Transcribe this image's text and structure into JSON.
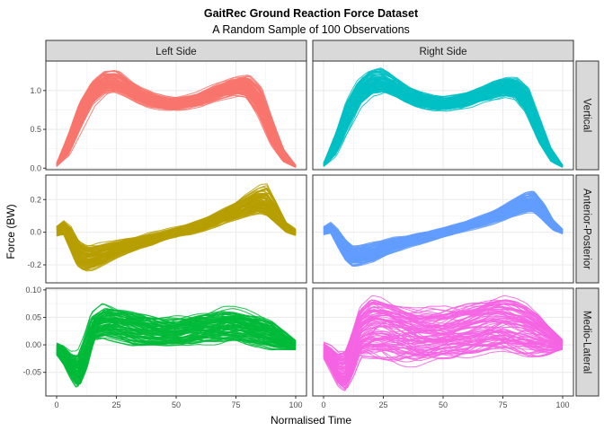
{
  "chart_data": {
    "type": "line",
    "title": "GaitRec Ground Reaction Force Dataset",
    "subtitle": "A Random Sample of 100 Observations",
    "xlabel": "Normalised Time",
    "ylabel": "Force (BW)",
    "grid": true,
    "legend": "none",
    "facet_columns": [
      "Left Side",
      "Right Side"
    ],
    "facet_rows": [
      "Vertical",
      "Anterior-Posterior",
      "Medio-Lateral"
    ],
    "x_ticks": [
      "0",
      "25",
      "50",
      "75",
      "100"
    ],
    "xlim": [
      0,
      100
    ],
    "panels": [
      {
        "row": "Vertical",
        "side": "Left Side",
        "color": "#F8766D",
        "ylim": [
          -0.02,
          1.38
        ],
        "y_ticks": [
          0.0,
          0.5,
          1.0
        ],
        "y_tick_labels": [
          "0.0",
          "0.5",
          "1.0"
        ],
        "x": [
          0,
          5,
          10,
          15,
          20,
          25,
          30,
          35,
          40,
          45,
          50,
          55,
          60,
          65,
          70,
          75,
          80,
          85,
          90,
          95,
          100
        ],
        "mean": [
          0.04,
          0.3,
          0.7,
          0.98,
          1.1,
          1.1,
          1.02,
          0.93,
          0.87,
          0.84,
          0.83,
          0.85,
          0.89,
          0.95,
          1.01,
          1.06,
          1.05,
          0.85,
          0.45,
          0.14,
          0.02
        ],
        "min": [
          0.02,
          0.16,
          0.48,
          0.8,
          0.95,
          0.98,
          0.92,
          0.84,
          0.78,
          0.75,
          0.74,
          0.76,
          0.79,
          0.85,
          0.89,
          0.93,
          0.9,
          0.65,
          0.3,
          0.08,
          0.01
        ],
        "max": [
          0.07,
          0.45,
          0.88,
          1.13,
          1.25,
          1.26,
          1.14,
          1.04,
          0.97,
          0.93,
          0.91,
          0.94,
          0.98,
          1.05,
          1.12,
          1.18,
          1.2,
          1.06,
          0.66,
          0.26,
          0.04
        ]
      },
      {
        "row": "Vertical",
        "side": "Right Side",
        "color": "#00BFC4",
        "ylim": [
          -0.02,
          1.38
        ],
        "y_ticks": [
          0.0,
          0.5,
          1.0
        ],
        "y_tick_labels": [
          "0.0",
          "0.5",
          "1.0"
        ],
        "x": [
          0,
          5,
          10,
          15,
          20,
          25,
          30,
          35,
          40,
          45,
          50,
          55,
          60,
          65,
          70,
          75,
          80,
          85,
          90,
          95,
          100
        ],
        "mean": [
          0.04,
          0.3,
          0.72,
          0.99,
          1.1,
          1.09,
          1.02,
          0.93,
          0.87,
          0.84,
          0.83,
          0.85,
          0.89,
          0.95,
          1.0,
          1.05,
          1.04,
          0.87,
          0.47,
          0.15,
          0.02
        ],
        "min": [
          0.02,
          0.15,
          0.45,
          0.78,
          0.93,
          0.96,
          0.9,
          0.83,
          0.77,
          0.74,
          0.73,
          0.75,
          0.78,
          0.84,
          0.87,
          0.91,
          0.88,
          0.66,
          0.3,
          0.08,
          0.01
        ],
        "max": [
          0.07,
          0.48,
          0.92,
          1.17,
          1.28,
          1.29,
          1.17,
          1.06,
          0.99,
          0.94,
          0.92,
          0.95,
          0.99,
          1.05,
          1.12,
          1.17,
          1.18,
          1.07,
          0.68,
          0.28,
          0.04
        ]
      },
      {
        "row": "Anterior-Posterior",
        "side": "Left Side",
        "color": "#B79F00",
        "ylim": [
          -0.31,
          0.35
        ],
        "y_ticks": [
          -0.2,
          0.0,
          0.2
        ],
        "y_tick_labels": [
          "-0.2",
          "0.0",
          "0.2"
        ],
        "x": [
          0,
          3,
          6,
          9,
          12,
          15,
          20,
          25,
          30,
          35,
          40,
          45,
          50,
          55,
          60,
          65,
          70,
          75,
          80,
          85,
          88,
          92,
          96,
          100
        ],
        "mean": [
          0.01,
          0.02,
          -0.05,
          -0.12,
          -0.15,
          -0.15,
          -0.13,
          -0.1,
          -0.08,
          -0.06,
          -0.04,
          -0.02,
          0.0,
          0.02,
          0.04,
          0.07,
          0.1,
          0.13,
          0.16,
          0.18,
          0.17,
          0.1,
          0.03,
          0.0
        ],
        "min": [
          -0.03,
          -0.02,
          -0.12,
          -0.22,
          -0.25,
          -0.24,
          -0.2,
          -0.16,
          -0.13,
          -0.1,
          -0.08,
          -0.05,
          -0.03,
          -0.02,
          -0.0,
          0.02,
          0.05,
          0.07,
          0.09,
          0.11,
          0.1,
          0.05,
          0.0,
          -0.02
        ],
        "max": [
          0.04,
          0.08,
          0.05,
          -0.04,
          -0.07,
          -0.07,
          -0.06,
          -0.05,
          -0.03,
          -0.02,
          0.0,
          0.01,
          0.03,
          0.05,
          0.08,
          0.11,
          0.15,
          0.19,
          0.24,
          0.29,
          0.31,
          0.2,
          0.07,
          0.02
        ]
      },
      {
        "row": "Anterior-Posterior",
        "side": "Right Side",
        "color": "#619CFF",
        "ylim": [
          -0.31,
          0.35
        ],
        "y_ticks": [
          -0.2,
          0.0,
          0.2
        ],
        "y_tick_labels": [
          "-0.2",
          "0.0",
          "0.2"
        ],
        "x": [
          0,
          3,
          6,
          9,
          12,
          15,
          20,
          25,
          30,
          35,
          40,
          45,
          50,
          55,
          60,
          65,
          70,
          75,
          80,
          85,
          88,
          92,
          96,
          100
        ],
        "mean": [
          0.01,
          0.02,
          -0.04,
          -0.1,
          -0.14,
          -0.14,
          -0.13,
          -0.1,
          -0.08,
          -0.06,
          -0.04,
          -0.02,
          0.0,
          0.02,
          0.04,
          0.06,
          0.09,
          0.12,
          0.15,
          0.18,
          0.18,
          0.12,
          0.04,
          0.0
        ],
        "min": [
          -0.02,
          -0.01,
          -0.1,
          -0.18,
          -0.22,
          -0.21,
          -0.19,
          -0.15,
          -0.12,
          -0.09,
          -0.07,
          -0.05,
          -0.03,
          -0.01,
          0.01,
          0.03,
          0.05,
          0.07,
          0.09,
          0.11,
          0.11,
          0.06,
          0.01,
          -0.01
        ],
        "max": [
          0.04,
          0.07,
          0.03,
          -0.03,
          -0.07,
          -0.07,
          -0.06,
          -0.05,
          -0.03,
          -0.02,
          0.0,
          0.01,
          0.03,
          0.05,
          0.07,
          0.1,
          0.13,
          0.17,
          0.21,
          0.25,
          0.26,
          0.19,
          0.08,
          0.02
        ]
      },
      {
        "row": "Medio-Lateral",
        "side": "Left Side",
        "color": "#00BA38",
        "ylim": [
          -0.093,
          0.103
        ],
        "y_ticks": [
          -0.05,
          0.0,
          0.05,
          0.1
        ],
        "y_tick_labels": [
          "-0.05",
          "0.00",
          "0.05",
          "0.10"
        ],
        "x": [
          0,
          3,
          6,
          9,
          12,
          15,
          20,
          25,
          30,
          35,
          40,
          45,
          50,
          55,
          60,
          65,
          70,
          75,
          80,
          85,
          90,
          95,
          100
        ],
        "mean": [
          -0.01,
          -0.02,
          -0.04,
          -0.05,
          -0.02,
          0.03,
          0.04,
          0.04,
          0.035,
          0.03,
          0.025,
          0.02,
          0.02,
          0.025,
          0.03,
          0.03,
          0.035,
          0.035,
          0.03,
          0.025,
          0.02,
          0.01,
          0.0
        ],
        "min": [
          -0.02,
          -0.04,
          -0.065,
          -0.085,
          -0.05,
          0.005,
          0.01,
          0.005,
          0.0,
          -0.005,
          -0.005,
          -0.005,
          -0.005,
          -0.005,
          0.0,
          0.0,
          0.0,
          0.0,
          -0.005,
          -0.005,
          -0.01,
          -0.01,
          -0.01
        ],
        "max": [
          0.005,
          0.0,
          -0.01,
          -0.01,
          0.02,
          0.06,
          0.08,
          0.075,
          0.07,
          0.065,
          0.06,
          0.055,
          0.055,
          0.055,
          0.06,
          0.065,
          0.07,
          0.07,
          0.065,
          0.06,
          0.05,
          0.03,
          0.01
        ]
      },
      {
        "row": "Medio-Lateral",
        "side": "Right Side",
        "color": "#F564E3",
        "ylim": [
          -0.093,
          0.103
        ],
        "y_ticks": [
          -0.05,
          0.0,
          0.05,
          0.1
        ],
        "y_tick_labels": [
          "-0.05",
          "0.00",
          "0.05",
          "0.10"
        ],
        "x": [
          0,
          3,
          6,
          9,
          12,
          15,
          20,
          25,
          30,
          35,
          40,
          45,
          50,
          55,
          60,
          65,
          70,
          75,
          80,
          85,
          90,
          95,
          100
        ],
        "mean": [
          -0.01,
          -0.025,
          -0.045,
          -0.05,
          -0.02,
          0.02,
          0.035,
          0.035,
          0.03,
          0.025,
          0.02,
          0.02,
          0.02,
          0.025,
          0.03,
          0.035,
          0.04,
          0.04,
          0.035,
          0.03,
          0.02,
          0.01,
          0.0
        ],
        "min": [
          -0.025,
          -0.05,
          -0.075,
          -0.085,
          -0.06,
          -0.025,
          -0.03,
          -0.035,
          -0.04,
          -0.04,
          -0.04,
          -0.035,
          -0.03,
          -0.03,
          -0.025,
          -0.02,
          -0.015,
          -0.015,
          -0.02,
          -0.025,
          -0.025,
          -0.02,
          -0.01
        ],
        "max": [
          0.005,
          0.0,
          -0.01,
          -0.005,
          0.03,
          0.07,
          0.09,
          0.085,
          0.08,
          0.075,
          0.07,
          0.07,
          0.07,
          0.075,
          0.08,
          0.085,
          0.09,
          0.09,
          0.085,
          0.075,
          0.06,
          0.035,
          0.01
        ]
      }
    ]
  }
}
